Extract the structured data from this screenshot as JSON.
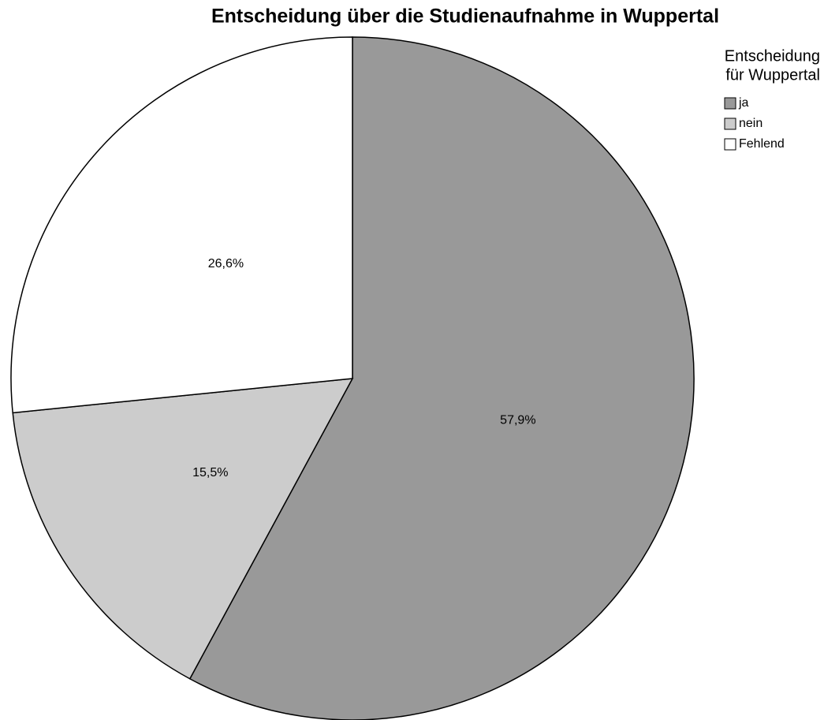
{
  "chart_data": {
    "type": "pie",
    "title": "Entscheidung über die Studienaufnahme in Wuppertal",
    "legend_title": [
      "Entscheidung",
      "für Wuppertal"
    ],
    "categories": [
      "ja",
      "nein",
      "Fehlend"
    ],
    "values": [
      57.9,
      15.5,
      26.6
    ],
    "value_labels": [
      "57,9%",
      "15,5%",
      "26,6%"
    ],
    "colors": [
      "#999999",
      "#cccccc",
      "#ffffff"
    ],
    "legend": "top-right"
  }
}
